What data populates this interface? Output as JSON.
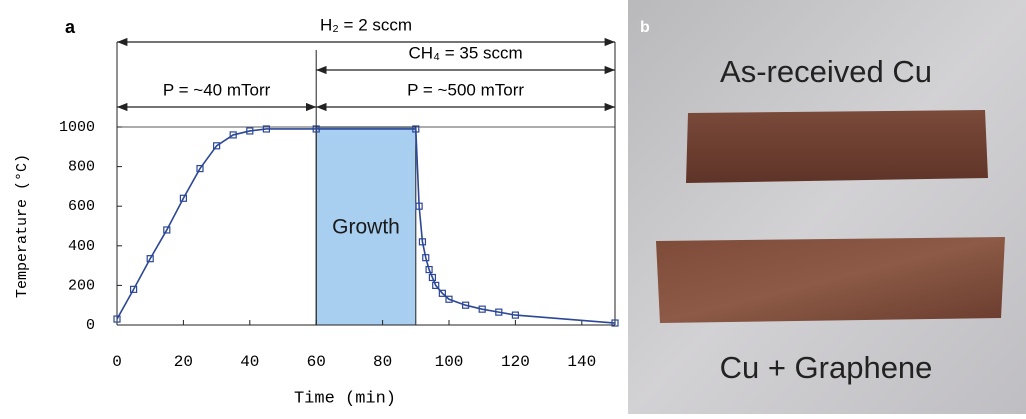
{
  "chart_data": {
    "type": "line",
    "panel_label": "a",
    "xlabel": "Time (min)",
    "ylabel": "Temperature (°C)",
    "x": [
      0,
      5,
      10,
      15,
      20,
      25,
      30,
      35,
      40,
      45,
      60,
      90,
      91,
      92,
      93,
      94,
      95,
      96,
      98,
      100,
      105,
      110,
      115,
      120,
      150
    ],
    "values": [
      30,
      180,
      335,
      480,
      640,
      790,
      905,
      960,
      980,
      990,
      990,
      990,
      600,
      420,
      340,
      280,
      240,
      200,
      160,
      130,
      100,
      80,
      65,
      50,
      10
    ],
    "color": "#2c4796",
    "xlim": [
      0,
      150
    ],
    "xticks": [
      0,
      20,
      40,
      60,
      80,
      100,
      120,
      140
    ],
    "ylim": [
      0,
      1000
    ],
    "yticks": [
      0,
      200,
      400,
      600,
      800,
      1000
    ],
    "annotations": [
      {
        "text": "H₂ = 2 sccm",
        "from": 0,
        "to": 150
      },
      {
        "text": "CH₄ = 35 sccm",
        "from": 60,
        "to": 150
      },
      {
        "text": "P = ~40 mTorr",
        "from": 0,
        "to": 60
      },
      {
        "text": "P = ~500 mTorr",
        "from": 60,
        "to": 150
      }
    ],
    "region": {
      "text": "Growth",
      "from": 60,
      "to": 90
    }
  },
  "photo": {
    "panel_label": "b",
    "top_text": "As-received Cu",
    "bottom_text": "Cu + Graphene"
  }
}
